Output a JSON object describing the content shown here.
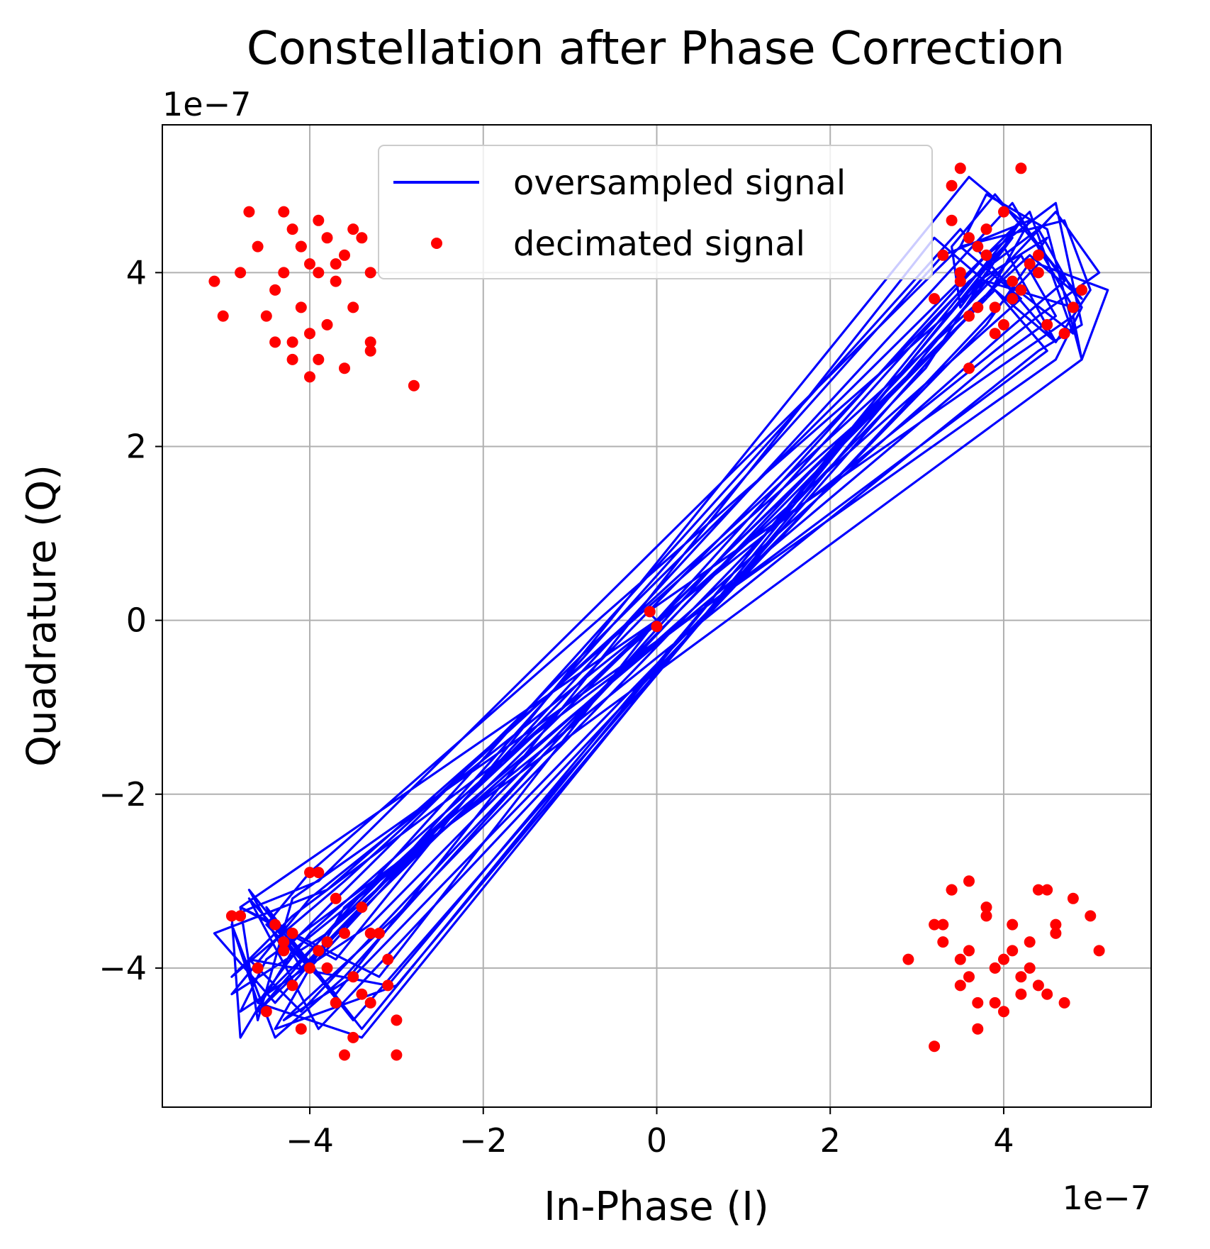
{
  "chart_data": {
    "type": "line",
    "title": "Constellation after Phase Correction",
    "xlabel": "In-Phase (I)",
    "ylabel": "Quadrature (Q)",
    "x_offset_text": "1e−7",
    "y_offset_text": "1e−7",
    "xlim": [
      -5.7,
      5.7
    ],
    "ylim": [
      -5.6,
      5.7
    ],
    "xticks": [
      -4,
      -2,
      0,
      2,
      4
    ],
    "yticks": [
      -4,
      -2,
      0,
      2,
      4
    ],
    "xtick_labels": [
      "−4",
      "−2",
      "0",
      "2",
      "4"
    ],
    "ytick_labels": [
      "−4",
      "−2",
      "0",
      "2",
      "4"
    ],
    "grid": true,
    "legend_position": "upper center",
    "series": [
      {
        "name": "oversampled signal",
        "kind": "line",
        "color": "#0000ff",
        "x": [
          0,
          -0.1,
          4.8,
          4.9,
          4.5,
          3.8,
          3.5,
          4.2,
          -4.0,
          -4.6,
          -4.9,
          -4.4,
          -3.6,
          3.6,
          4.4,
          4.9,
          4.6,
          -4.2,
          -4.6,
          -4.8,
          -3.2,
          0,
          3.8,
          4.6,
          4.9,
          4.4,
          -4.2,
          -4.8,
          -4.9,
          -3.9,
          3.5,
          4.7,
          5.0,
          4.6,
          3.2,
          -3.7,
          -4.5,
          -4.0,
          3.9,
          4.8,
          4.3,
          -4.3,
          -4.7,
          -3.5,
          4.2,
          4.6,
          3.9,
          -3.6,
          -4.4,
          -3.0,
          3.8,
          4.8,
          4.1,
          -4.0,
          -4.7,
          -3.9,
          4.4,
          5.2,
          4.9,
          -4.5,
          -4.8,
          -3.3,
          3.8,
          4.3,
          3.3,
          -4.4,
          -5.1,
          -3.8,
          2.8,
          0,
          -3.0,
          -4.6,
          -3.4,
          4.0,
          4.6,
          3.5,
          -3.9,
          -4.6,
          3.9,
          4.5,
          -4.2,
          -4.9,
          -3.6,
          4.3,
          4.9,
          3.9,
          3.4,
          3.5,
          4.1,
          -4.1,
          -4.5,
          -3.4,
          4.2,
          4.7,
          4.0,
          -3.8,
          -4.9,
          -4.0,
          4.4,
          5.1,
          4.6,
          -4.1,
          -4.7,
          -3.1,
          3.7,
          4.5,
          3.8,
          -3.5,
          -4.3,
          -3.0,
          3.1,
          4.2,
          3.6,
          -3.7,
          -4.8,
          0
        ],
        "y": [
          0,
          0.1,
          3.5,
          3.0,
          4.5,
          4.9,
          4.3,
          3.7,
          -3.6,
          -4.4,
          -3.5,
          -4.8,
          -4.1,
          3.9,
          4.5,
          3.6,
          3.0,
          -3.2,
          -4.6,
          -3.3,
          -4.1,
          0,
          4.2,
          4.8,
          3.4,
          3.1,
          -3.8,
          -4.8,
          -3.4,
          -3.0,
          4.3,
          4.6,
          3.8,
          3.2,
          4.4,
          -4.3,
          -3.5,
          -2.9,
          4.0,
          3.3,
          4.7,
          -3.8,
          -3.1,
          -4.6,
          4.2,
          3.5,
          3.0,
          -3.3,
          -4.7,
          -4.2,
          3.9,
          3.6,
          4.8,
          -4.0,
          -3.2,
          -4.7,
          4.1,
          3.8,
          3.0,
          -3.9,
          -4.5,
          -3.5,
          3.7,
          4.6,
          4.2,
          -4.4,
          -3.6,
          -3.1,
          2.7,
          0,
          -2.8,
          -4.4,
          -4.8,
          4.3,
          3.2,
          4.5,
          -3.7,
          -4.5,
          3.8,
          3.1,
          -3.4,
          -4.1,
          -3.0,
          4.2,
          3.7,
          4.9,
          4.3,
          3.6,
          4.4,
          -4.0,
          -3.3,
          -4.7,
          4.6,
          3.9,
          3.3,
          -3.6,
          -4.3,
          -3.2,
          3.5,
          4.0,
          4.7,
          -4.5,
          -3.9,
          -4.2,
          3.9,
          4.4,
          3.4,
          -4.1,
          -4.6,
          -3.4,
          2.9,
          4.6,
          5.1,
          -3.9,
          -3.3,
          0
        ]
      },
      {
        "name": "decimated signal",
        "kind": "scatter",
        "color": "#ff0000",
        "x": [
          -4.2,
          -4.6,
          -4.0,
          -3.8,
          -4.4,
          -3.9,
          -3.6,
          -4.1,
          -4.3,
          -3.7,
          -3.4,
          -4.5,
          -4.0,
          -3.5,
          -3.8,
          -4.2,
          -3.3,
          -3.9,
          -4.1,
          -3.6,
          -4.7,
          -4.8,
          -5.1,
          -5.0,
          -4.4,
          -4.2,
          -3.3,
          -2.8,
          -4.0,
          -3.9,
          -3.5,
          -3.7,
          -4.1,
          -3.3,
          -4.3,
          3.5,
          3.8,
          4.1,
          3.6,
          3.4,
          3.9,
          4.3,
          3.7,
          4.0,
          3.3,
          3.6,
          4.2,
          3.8,
          4.5,
          4.1,
          3.5,
          3.4,
          4.8,
          4.7,
          4.0,
          3.2,
          3.9,
          4.4,
          3.7,
          4.2,
          3.6,
          4.4,
          4.9,
          3.5,
          -4.2,
          -3.9,
          -3.5,
          -4.4,
          -3.7,
          -4.0,
          -3.4,
          -3.1,
          -4.6,
          -4.8,
          -3.8,
          -3.3,
          -4.1,
          -3.6,
          -3.0,
          -4.3,
          -3.5,
          -4.9,
          -3.7,
          -3.2,
          -3.9,
          -3.1,
          -4.2,
          -4.5,
          -3.4,
          -3.0,
          -3.6,
          -4.0,
          -3.3,
          -3.8,
          -4.3,
          3.4,
          3.8,
          4.1,
          3.6,
          4.3,
          3.9,
          3.5,
          4.4,
          4.6,
          3.7,
          4.2,
          3.3,
          4.0,
          4.5,
          3.6,
          4.8,
          3.2,
          4.0,
          4.4,
          3.9,
          3.5,
          4.6,
          4.1,
          3.7,
          5.0,
          4.3,
          3.4,
          3.8,
          4.7,
          3.2,
          2.9,
          5.1,
          4.5,
          4.2,
          3.6,
          3.3,
          0.0,
          -0.08
        ],
        "y": [
          4.5,
          4.3,
          4.1,
          4.4,
          3.8,
          4.0,
          4.2,
          3.6,
          4.0,
          3.9,
          4.4,
          3.5,
          3.3,
          3.6,
          3.4,
          3.2,
          3.1,
          3.0,
          4.3,
          2.9,
          4.7,
          4.0,
          3.9,
          3.5,
          3.2,
          3.0,
          3.2,
          2.7,
          2.8,
          4.6,
          4.5,
          4.1,
          4.3,
          4.0,
          4.7,
          4.0,
          4.2,
          3.9,
          4.4,
          4.6,
          3.6,
          4.1,
          4.3,
          3.4,
          4.2,
          3.5,
          3.8,
          4.5,
          3.4,
          3.7,
          5.2,
          5.0,
          3.6,
          3.3,
          4.7,
          3.7,
          3.3,
          4.2,
          3.6,
          5.2,
          2.9,
          4.0,
          3.8,
          3.9,
          -3.6,
          -3.8,
          -4.1,
          -3.5,
          -3.2,
          -4.0,
          -4.3,
          -3.9,
          -4.0,
          -3.4,
          -3.7,
          -4.4,
          -4.7,
          -3.6,
          -4.6,
          -3.7,
          -4.8,
          -3.4,
          -4.4,
          -3.6,
          -2.9,
          -4.2,
          -4.2,
          -4.5,
          -3.3,
          -5.0,
          -5.0,
          -2.9,
          -3.6,
          -4.0,
          -3.8,
          -3.1,
          -3.3,
          -3.5,
          -3.0,
          -3.7,
          -4.0,
          -3.9,
          -3.1,
          -3.6,
          -4.4,
          -4.1,
          -3.5,
          -3.9,
          -4.3,
          -3.8,
          -3.2,
          -4.9,
          -4.5,
          -4.2,
          -4.4,
          -4.2,
          -3.5,
          -3.8,
          -4.7,
          -3.4,
          -4.0,
          -3.1,
          -3.4,
          -4.4,
          -3.5,
          -3.9,
          -3.8,
          -3.1,
          -4.3,
          -4.1,
          -3.7,
          -0.07,
          0.1
        ]
      }
    ]
  }
}
